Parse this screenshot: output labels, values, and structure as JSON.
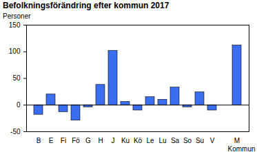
{
  "chart_data": {
    "type": "bar",
    "title": "Befolkningsförändring efter kommun 2017",
    "subtitle": "Personer",
    "x_label": "Kommun",
    "categories": [
      "B",
      "E",
      "Fi",
      "Fö",
      "G",
      "H",
      "J",
      "Ku",
      "Kö",
      "Le",
      "Lu",
      "Sa",
      "So",
      "Su",
      "V",
      null,
      "M"
    ],
    "values": [
      -18,
      20,
      -13,
      -29,
      -4,
      38,
      102,
      6,
      -10,
      15,
      10,
      33,
      -4,
      24,
      -10,
      null,
      112
    ],
    "color": "#3a6df0",
    "ylim": [
      -50,
      150
    ],
    "yticks": [
      -50,
      0,
      50,
      100,
      150
    ],
    "grid": false
  }
}
